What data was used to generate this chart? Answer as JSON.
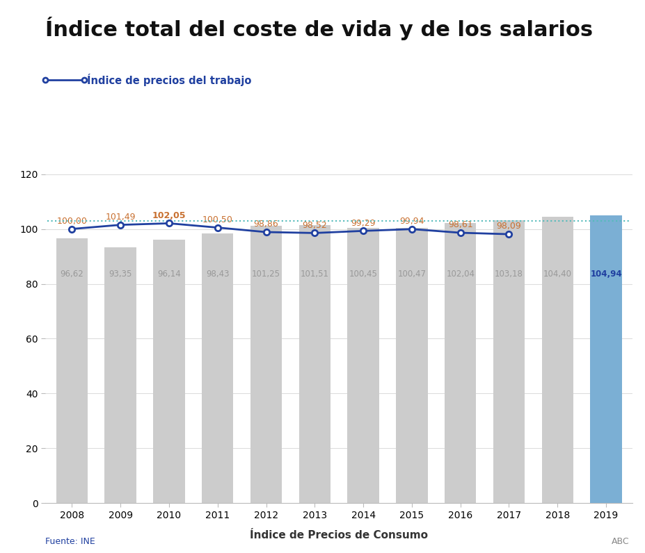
{
  "title": "Índice total del coste de vida y de los salarios",
  "legend_label": "Índice de precios del trabajo",
  "xlabel": "Índice de Precios de Consumo",
  "source_left": "Fuente: INE",
  "source_right": "ABC",
  "years": [
    2008,
    2009,
    2010,
    2011,
    2012,
    2013,
    2014,
    2015,
    2016,
    2017,
    2018,
    2019
  ],
  "bar_values": [
    96.62,
    93.35,
    96.14,
    98.43,
    101.25,
    101.51,
    100.45,
    100.47,
    102.04,
    103.18,
    104.4,
    104.94
  ],
  "line_values": [
    100.0,
    101.49,
    102.05,
    100.5,
    98.86,
    98.52,
    99.29,
    99.94,
    98.61,
    98.09,
    null,
    null
  ],
  "bar_colors": [
    "#cccccc",
    "#cccccc",
    "#cccccc",
    "#cccccc",
    "#cccccc",
    "#cccccc",
    "#cccccc",
    "#cccccc",
    "#cccccc",
    "#cccccc",
    "#cccccc",
    "#7bafd4"
  ],
  "line_color": "#2040a0",
  "dotted_line_y": 103.0,
  "dotted_line_color": "#55bbbb",
  "ylim": [
    0,
    125
  ],
  "yticks": [
    0,
    20,
    40,
    60,
    80,
    100,
    120
  ],
  "title_fontsize": 22,
  "title_color": "#111111",
  "legend_color": "#2040a0",
  "bar_label_color_grey": "#999999",
  "bar_label_color_blue": "#2040a0",
  "line_label_color": "#c87030",
  "line_label_bold_year": 2010,
  "source_color_left": "#2040a0",
  "source_color_right": "#888888",
  "axis_label_fontsize": 11
}
